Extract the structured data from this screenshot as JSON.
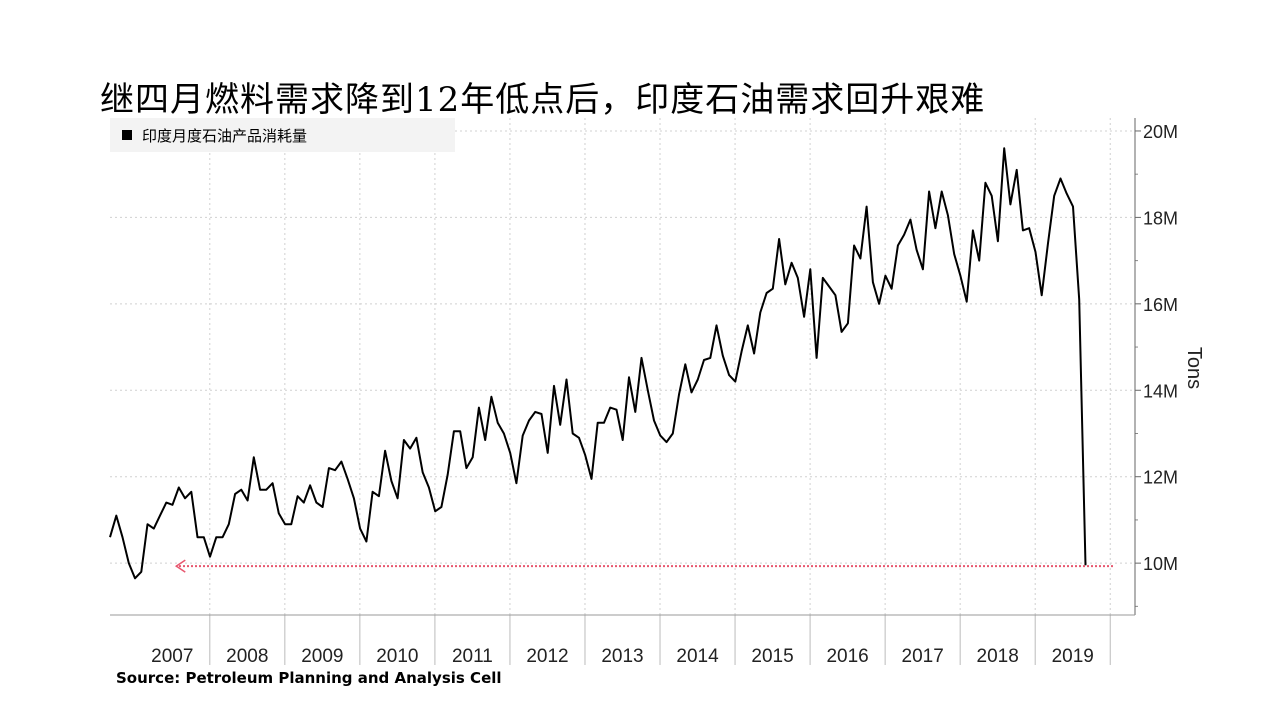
{
  "chart_data": {
    "type": "line",
    "title": "继四月燃料需求降到12年低点后，印度石油需求回升艰难",
    "legend": "印度月度石油产品消耗量",
    "source": "Source: Petroleum Planning and Analysis Cell",
    "ylabel": "Tons",
    "ylim": [
      8800000,
      20300000
    ],
    "yticks": [
      {
        "value": 10000000,
        "label": "10M"
      },
      {
        "value": 12000000,
        "label": "12M"
      },
      {
        "value": 14000000,
        "label": "14M"
      },
      {
        "value": 16000000,
        "label": "16M"
      },
      {
        "value": 18000000,
        "label": "18M"
      },
      {
        "value": 20000000,
        "label": "20M"
      }
    ],
    "xlim": [
      2006.67,
      2020.33
    ],
    "year_labels": [
      "2007",
      "2008",
      "2009",
      "2010",
      "2011",
      "2012",
      "2013",
      "2014",
      "2015",
      "2016",
      "2017",
      "2018",
      "2019"
    ],
    "grid": true,
    "legend_position": "top-left",
    "series": [
      {
        "start": 2006.67,
        "step": 0.0833333,
        "color": "#000000",
        "values": [
          10.6,
          11.1,
          10.6,
          10.0,
          9.65,
          9.8,
          10.9,
          10.8,
          11.1,
          11.4,
          11.35,
          11.75,
          11.5,
          11.65,
          10.6,
          10.6,
          10.15,
          10.6,
          10.6,
          10.9,
          11.6,
          11.7,
          11.45,
          12.45,
          11.7,
          11.7,
          11.85,
          11.15,
          10.9,
          10.9,
          11.55,
          11.4,
          11.8,
          11.4,
          11.3,
          12.2,
          12.15,
          12.35,
          11.95,
          11.5,
          10.8,
          10.5,
          11.65,
          11.55,
          12.6,
          11.9,
          11.5,
          12.85,
          12.65,
          12.9,
          12.1,
          11.75,
          11.2,
          11.3,
          12.05,
          13.05,
          13.05,
          12.2,
          12.45,
          13.6,
          12.85,
          13.85,
          13.25,
          13.0,
          12.55,
          11.85,
          12.95,
          13.3,
          13.5,
          13.45,
          12.55,
          14.1,
          13.2,
          14.25,
          13.0,
          12.9,
          12.5,
          11.95,
          13.25,
          13.25,
          13.6,
          13.55,
          12.85,
          14.3,
          13.5,
          14.75,
          14.0,
          13.3,
          12.95,
          12.8,
          13.0,
          13.9,
          14.6,
          13.95,
          14.25,
          14.7,
          14.75,
          15.5,
          14.8,
          14.35,
          14.2,
          14.9,
          15.5,
          14.85,
          15.8,
          16.25,
          16.35,
          17.5,
          16.45,
          16.95,
          16.6,
          15.7,
          16.8,
          14.75,
          16.6,
          16.4,
          16.2,
          15.35,
          15.55,
          17.35,
          17.05,
          18.25,
          16.5,
          16.0,
          16.65,
          16.35,
          17.35,
          17.6,
          17.95,
          17.25,
          16.8,
          18.6,
          17.75,
          18.6,
          18.05,
          17.15,
          16.65,
          16.05,
          17.7,
          17.0,
          18.8,
          18.5,
          17.45,
          19.6,
          18.3,
          19.1,
          17.7,
          17.75,
          17.2,
          16.2,
          17.4,
          18.5,
          18.9,
          18.55,
          18.25,
          16.1,
          9.95
        ]
      }
    ],
    "annotation": {
      "type": "dotted-arrow",
      "color": "#e8576f",
      "y": 9.93,
      "x_from": 2020.33,
      "x_to": 2007.5
    }
  }
}
